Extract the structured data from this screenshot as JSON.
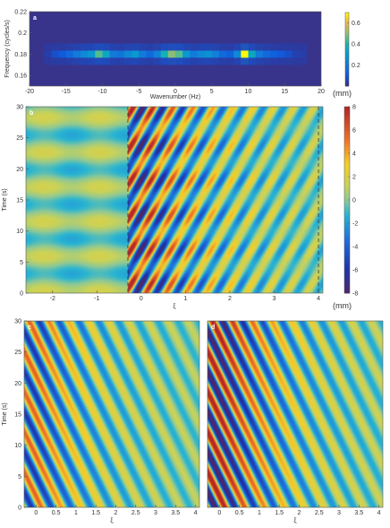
{
  "chart_data": [
    {
      "panel": "a",
      "type": "heatmap",
      "xlabel": "Wavenumber (Hz)",
      "ylabel": "Frequency (cycles/s)",
      "xlim": [
        -20,
        20
      ],
      "ylim": [
        0.15,
        0.22
      ],
      "xticks": [
        -20,
        -15,
        -10,
        -5,
        0,
        5,
        10,
        15,
        20
      ],
      "yticks": [
        0.16,
        0.18,
        0.2,
        0.22
      ],
      "colorbar": {
        "ticks": [
          0.2,
          0.4,
          0.6
        ],
        "range": [
          0,
          0.7
        ],
        "unit": "(mm)"
      },
      "ridge_frequency": 0.18,
      "ridge_x": [
        -17.5,
        -16.5,
        -15.5,
        -14.5,
        -13.5,
        -12.5,
        -11.5,
        -10.5,
        -9.5,
        -8.5,
        -7.5,
        -6.5,
        -5.5,
        -4.5,
        -3.5,
        -2.5,
        -1.5,
        -0.5,
        0.5,
        1.5,
        2.5,
        3.5,
        4.5,
        5.5,
        6.5,
        7.5,
        8.5,
        9.5,
        10.5,
        11.5,
        12.5,
        13.5,
        14.5,
        15.5,
        16.5,
        17.5
      ],
      "ridge_values": [
        0.04,
        0.08,
        0.1,
        0.15,
        0.2,
        0.25,
        0.3,
        0.45,
        0.35,
        0.2,
        0.18,
        0.25,
        0.3,
        0.2,
        0.15,
        0.22,
        0.38,
        0.5,
        0.45,
        0.3,
        0.2,
        0.25,
        0.28,
        0.22,
        0.15,
        0.12,
        0.25,
        0.7,
        0.35,
        0.2,
        0.15,
        0.12,
        0.1,
        0.08,
        0.05,
        0.04
      ]
    },
    {
      "panel": "b",
      "type": "heatmap",
      "xlabel": "ξ",
      "ylabel": "Time (s)",
      "xlim": [
        -2.6,
        4.1
      ],
      "ylim": [
        0,
        30
      ],
      "xticks": [
        -2,
        -1,
        0,
        1,
        2,
        3,
        4
      ],
      "yticks": [
        0,
        5,
        10,
        15,
        20,
        25,
        30
      ],
      "dashed_lines_x": [
        -0.3,
        4.0
      ],
      "colorbar": {
        "ticks": [
          -8,
          -6,
          -4,
          -2,
          0,
          2,
          4,
          6,
          8
        ],
        "range": [
          -8,
          8
        ],
        "unit": "(mm)"
      }
    },
    {
      "panel": "c",
      "type": "heatmap",
      "xlabel": "ξ",
      "ylabel": "Time (s)",
      "xlim": [
        -0.3,
        4.1
      ],
      "ylim": [
        0,
        30
      ],
      "xticks": [
        0,
        0.5,
        1,
        1.5,
        2,
        2.5,
        3,
        3.5,
        4
      ],
      "yticks": [
        0,
        5,
        10,
        15,
        20,
        25,
        30
      ]
    },
    {
      "panel": "d",
      "type": "heatmap",
      "xlabel": "ξ",
      "xlim": [
        -0.3,
        4.1
      ],
      "ylim": [
        0,
        30
      ],
      "xticks": [
        0,
        0.5,
        1,
        1.5,
        2,
        2.5,
        3,
        3.5,
        4
      ]
    }
  ]
}
